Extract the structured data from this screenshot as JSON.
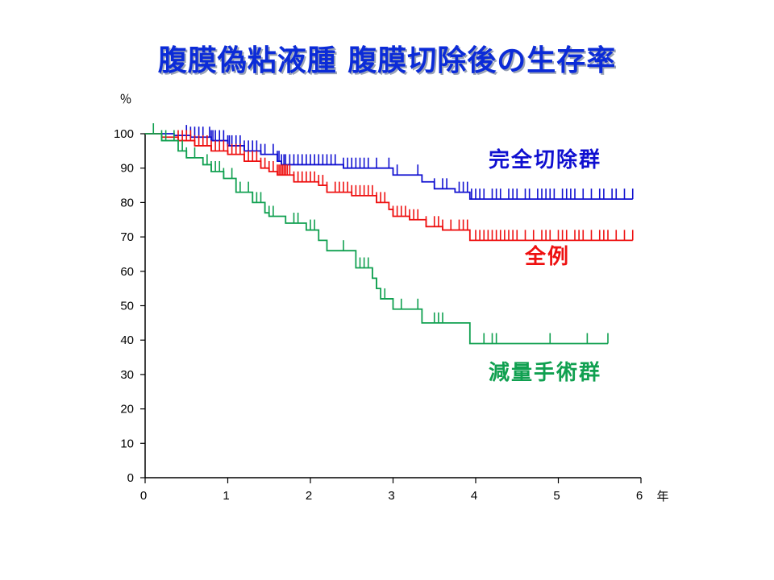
{
  "title": "腹膜偽粘液腫 腹膜切除後の生存率",
  "chart_data": {
    "type": "line",
    "title": "腹膜偽粘液腫 腹膜切除後の生存率",
    "xlabel": "年",
    "ylabel": "％",
    "xlim": [
      0,
      6
    ],
    "ylim": [
      0,
      100
    ],
    "xticks": [
      "0",
      "1",
      "2",
      "3",
      "4",
      "5",
      "6"
    ],
    "yticks": [
      "0",
      "10",
      "20",
      "30",
      "40",
      "50",
      "60",
      "70",
      "80",
      "90",
      "100"
    ],
    "grid": false,
    "legend": "direct labels to the right of curves",
    "series": [
      {
        "name": "完全切除群",
        "color": "#1010d0",
        "steps": [
          [
            0,
            100
          ],
          [
            0.35,
            99.5
          ],
          [
            0.55,
            99
          ],
          [
            0.8,
            98
          ],
          [
            1.0,
            96.5
          ],
          [
            1.2,
            95
          ],
          [
            1.4,
            94
          ],
          [
            1.6,
            92
          ],
          [
            1.65,
            91
          ],
          [
            2.0,
            91
          ],
          [
            2.4,
            90
          ],
          [
            3.0,
            88
          ],
          [
            3.35,
            86
          ],
          [
            3.5,
            84
          ],
          [
            3.75,
            83
          ],
          [
            3.93,
            81
          ],
          [
            5.9,
            81
          ]
        ],
        "censored": [
          0.5,
          0.55,
          0.6,
          0.65,
          0.7,
          0.78,
          0.8,
          0.82,
          0.85,
          0.9,
          0.95,
          1.0,
          1.02,
          1.05,
          1.1,
          1.15,
          1.2,
          1.25,
          1.3,
          1.35,
          1.4,
          1.45,
          1.55,
          1.6,
          1.62,
          1.65,
          1.68,
          1.7,
          1.75,
          1.8,
          1.85,
          1.9,
          1.95,
          2.0,
          2.05,
          2.1,
          2.15,
          2.2,
          2.25,
          2.3,
          2.4,
          2.45,
          2.5,
          2.55,
          2.6,
          2.65,
          2.7,
          2.8,
          2.95,
          3.05,
          3.3,
          3.5,
          3.6,
          3.65,
          3.8,
          3.85,
          3.9,
          3.95,
          4.0,
          4.05,
          4.1,
          4.2,
          4.25,
          4.3,
          4.4,
          4.45,
          4.5,
          4.6,
          4.65,
          4.75,
          4.8,
          4.85,
          4.9,
          4.95,
          5.05,
          5.1,
          5.15,
          5.2,
          5.3,
          5.4,
          5.5,
          5.55,
          5.65,
          5.7,
          5.8,
          5.9
        ]
      },
      {
        "name": "全例",
        "color": "#ee1010",
        "steps": [
          [
            0,
            100
          ],
          [
            0.2,
            99
          ],
          [
            0.4,
            98
          ],
          [
            0.6,
            96.5
          ],
          [
            0.8,
            95
          ],
          [
            1.0,
            94
          ],
          [
            1.2,
            92
          ],
          [
            1.4,
            90
          ],
          [
            1.5,
            89
          ],
          [
            1.6,
            88
          ],
          [
            1.8,
            86
          ],
          [
            2.1,
            85
          ],
          [
            2.2,
            83
          ],
          [
            2.5,
            82
          ],
          [
            2.8,
            80
          ],
          [
            2.95,
            78
          ],
          [
            3.0,
            76
          ],
          [
            3.2,
            75
          ],
          [
            3.4,
            73
          ],
          [
            3.6,
            72
          ],
          [
            3.93,
            69
          ],
          [
            5.9,
            69
          ]
        ],
        "censored": [
          0.4,
          0.45,
          0.5,
          0.55,
          0.6,
          0.65,
          0.7,
          0.75,
          0.8,
          0.85,
          0.9,
          0.95,
          1.0,
          1.05,
          1.1,
          1.15,
          1.2,
          1.25,
          1.3,
          1.35,
          1.4,
          1.45,
          1.5,
          1.55,
          1.6,
          1.62,
          1.64,
          1.66,
          1.68,
          1.7,
          1.72,
          1.75,
          1.8,
          1.85,
          1.9,
          1.95,
          2.0,
          2.05,
          2.1,
          2.15,
          2.2,
          2.3,
          2.35,
          2.4,
          2.45,
          2.5,
          2.55,
          2.6,
          2.65,
          2.7,
          2.75,
          2.8,
          2.85,
          2.9,
          3.0,
          3.05,
          3.1,
          3.15,
          3.2,
          3.25,
          3.3,
          3.4,
          3.5,
          3.55,
          3.6,
          3.7,
          3.8,
          3.85,
          3.9,
          4.0,
          4.05,
          4.1,
          4.15,
          4.2,
          4.25,
          4.3,
          4.35,
          4.4,
          4.45,
          4.5,
          4.6,
          4.7,
          4.8,
          4.85,
          4.9,
          5.0,
          5.05,
          5.1,
          5.2,
          5.25,
          5.3,
          5.4,
          5.5,
          5.55,
          5.6,
          5.7,
          5.8,
          5.9
        ]
      },
      {
        "name": "減量手術群",
        "color": "#10a050",
        "steps": [
          [
            0,
            100
          ],
          [
            0.2,
            98
          ],
          [
            0.4,
            95
          ],
          [
            0.5,
            93
          ],
          [
            0.7,
            91
          ],
          [
            0.8,
            89
          ],
          [
            0.95,
            87
          ],
          [
            1.1,
            83
          ],
          [
            1.3,
            80
          ],
          [
            1.45,
            77
          ],
          [
            1.5,
            76
          ],
          [
            1.7,
            74
          ],
          [
            1.95,
            72
          ],
          [
            2.1,
            69
          ],
          [
            2.2,
            66
          ],
          [
            2.55,
            61
          ],
          [
            2.75,
            58
          ],
          [
            2.8,
            55
          ],
          [
            2.85,
            52
          ],
          [
            3.0,
            49
          ],
          [
            3.35,
            45
          ],
          [
            3.93,
            39
          ],
          [
            5.6,
            39
          ]
        ],
        "censored": [
          0.1,
          0.2,
          0.25,
          0.35,
          0.45,
          0.5,
          0.6,
          0.75,
          0.8,
          0.85,
          0.9,
          0.95,
          1.05,
          1.15,
          1.25,
          1.3,
          1.35,
          1.4,
          1.45,
          1.5,
          1.55,
          1.8,
          1.85,
          2.0,
          2.05,
          2.4,
          2.6,
          2.65,
          2.7,
          2.75,
          2.8,
          2.9,
          3.1,
          3.3,
          3.5,
          3.55,
          3.6,
          4.1,
          4.2,
          4.25,
          4.9,
          5.35,
          5.6
        ]
      }
    ]
  }
}
